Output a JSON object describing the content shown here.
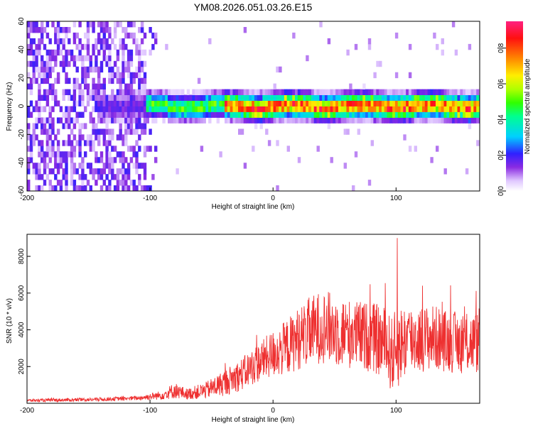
{
  "figure_title": "YM08.2026.051.03.26.E15",
  "chart_data": [
    {
      "type": "heatmap",
      "title": "YM08.2026.051.03.26.E15",
      "xlabel": "Height of straight line (km)",
      "ylabel": "Frequency (Hz)",
      "xlim": [
        -200,
        168
      ],
      "ylim": [
        -60,
        60
      ],
      "xticks": [
        -200,
        -100,
        0,
        100
      ],
      "yticks": [
        -60,
        -40,
        -20,
        0,
        20,
        40,
        60
      ],
      "xtick_labels": [
        "-200",
        "-100",
        "0",
        "100"
      ],
      "ytick_labels": [
        "-60",
        "-40",
        "-20",
        "0",
        "20",
        "40",
        "60"
      ],
      "colorbar": {
        "label": "Normalized spectral amplitude",
        "range": [
          0,
          0.95
        ],
        "ticks": [
          0.0,
          0.2,
          0.4,
          0.6,
          0.8
        ],
        "tick_labels": [
          "0.0",
          "0.2",
          "0.4",
          "0.6",
          "0.8"
        ],
        "colormap": "rainbow"
      },
      "description_points": {
        "noise_region_x": [
          -200,
          -100
        ],
        "signal_start_x": -105,
        "signal_center_freq": 0,
        "signal_peak_amplitude": 0.9,
        "signal_peak_x": [
          0,
          168
        ]
      },
      "grid": false
    },
    {
      "type": "line",
      "xlabel": "Height of straight line (km)",
      "ylabel": "SNR (10 * v/v)",
      "xlim": [
        -200,
        168
      ],
      "ylim": [
        0,
        9200
      ],
      "xticks": [
        -200,
        -100,
        0,
        100
      ],
      "yticks": [
        2000,
        4000,
        6000,
        8000
      ],
      "xtick_labels": [
        "-200",
        "-100",
        "0",
        "100"
      ],
      "ytick_labels": [
        "2000",
        "4000",
        "6000",
        "8000"
      ],
      "series_color": "#ee3030",
      "envelope": {
        "x": [
          -200,
          -150,
          -110,
          -90,
          -80,
          -70,
          -55,
          -40,
          -25,
          -10,
          0,
          10,
          20,
          30,
          40,
          50,
          60,
          70,
          80,
          90,
          97,
          100,
          105,
          110,
          120,
          130,
          140,
          150,
          160,
          168
        ],
        "mean": [
          150,
          200,
          280,
          450,
          700,
          500,
          700,
          1100,
          1600,
          2300,
          2700,
          3000,
          3500,
          3900,
          4200,
          4000,
          3800,
          3700,
          3600,
          3300,
          2600,
          2900,
          3300,
          3500,
          3500,
          3600,
          3400,
          3300,
          3300,
          3300
        ],
        "spread": [
          80,
          100,
          120,
          250,
          450,
          300,
          450,
          700,
          900,
          1100,
          1300,
          1500,
          1700,
          1900,
          2000,
          2000,
          1900,
          1900,
          1900,
          2000,
          2100,
          2300,
          2100,
          2000,
          1800,
          1800,
          1700,
          1700,
          1700,
          1700
        ]
      },
      "peak": {
        "x": 101,
        "y": 9000
      },
      "grid": false
    }
  ]
}
